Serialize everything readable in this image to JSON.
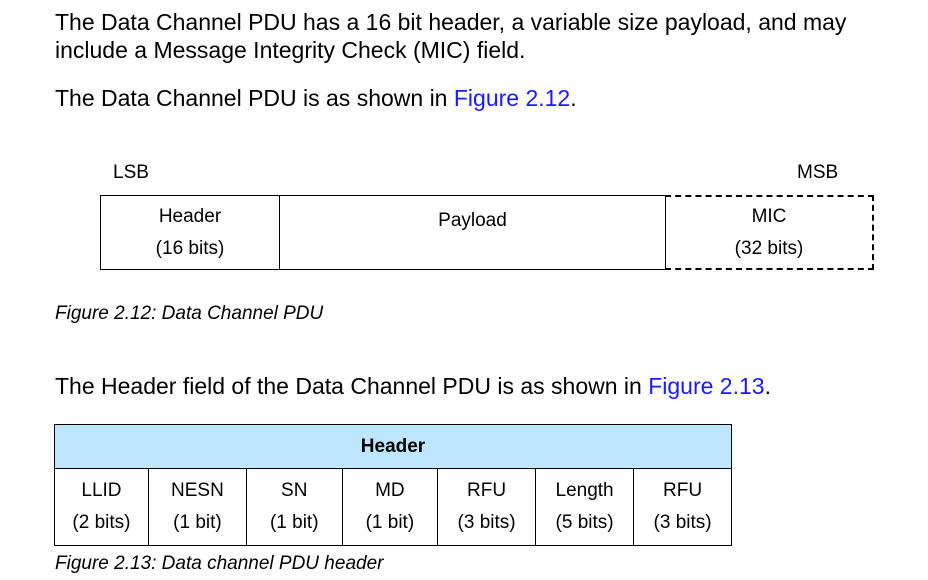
{
  "intro": {
    "text": "The Data Channel PDU has a 16 bit header, a variable size payload, and may include a Message Integrity Check (MIC) field.",
    "line1": "The Data Channel PDU has a 16 bit header, a variable size payload, and may",
    "line2": "include a Message Integrity Check (MIC) field."
  },
  "ref1": {
    "prefix": "The Data Channel PDU is as shown in ",
    "link": "Figure 2.12",
    "suffix": "."
  },
  "figure_pdu": {
    "lsb_label": "LSB",
    "msb_label": "MSB",
    "fields": [
      {
        "name": "Header",
        "size": "(16 bits)",
        "optional": false
      },
      {
        "name": "Payload",
        "size": "",
        "optional": false
      },
      {
        "name": "MIC",
        "size": "(32 bits)",
        "optional": true
      }
    ],
    "caption": "Figure 2.12: Data Channel PDU"
  },
  "ref2": {
    "prefix": "The Header field of the Data Channel PDU is as shown in ",
    "link": "Figure 2.13",
    "suffix": "."
  },
  "figure_header": {
    "title": "Header",
    "header_bg": "#bfe6ff",
    "fields": [
      {
        "name": "LLID",
        "size": "(2 bits)"
      },
      {
        "name": "NESN",
        "size": "(1 bit)"
      },
      {
        "name": "SN",
        "size": "(1 bit)"
      },
      {
        "name": "MD",
        "size": "(1 bit)"
      },
      {
        "name": "RFU",
        "size": "(3 bits)"
      },
      {
        "name": "Length",
        "size": "(5 bits)"
      },
      {
        "name": "RFU",
        "size": "(3 bits)"
      }
    ],
    "caption": "Figure 2.13: Data channel PDU header"
  },
  "colors": {
    "link": "#1a1aff",
    "text": "#000000"
  }
}
